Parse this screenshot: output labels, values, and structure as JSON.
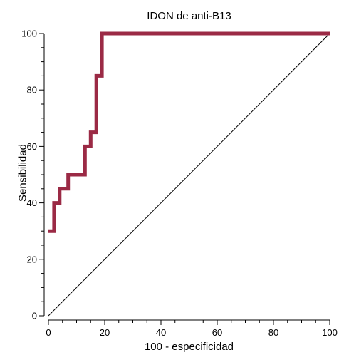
{
  "chart_data": {
    "type": "line",
    "title": "IDON de anti-B13",
    "xlabel": "100 - especificidad",
    "ylabel": "Sensibilidad",
    "xlim": [
      0,
      100
    ],
    "ylim": [
      0,
      100
    ],
    "x_ticks": [
      0,
      20,
      40,
      60,
      80,
      100
    ],
    "y_ticks": [
      0,
      20,
      40,
      60,
      80,
      100
    ],
    "grid": false,
    "series": [
      {
        "color": "#9b2a45",
        "x": [
          0,
          2,
          2,
          4,
          4,
          7,
          7,
          13,
          13,
          15,
          15,
          17,
          17,
          19,
          19,
          100
        ],
        "y": [
          30,
          30,
          40,
          40,
          45,
          45,
          50,
          50,
          60,
          60,
          65,
          65,
          85,
          85,
          100,
          100
        ]
      },
      {
        "color": "#000000",
        "x": [
          0,
          100
        ],
        "y": [
          0,
          100
        ]
      }
    ]
  }
}
